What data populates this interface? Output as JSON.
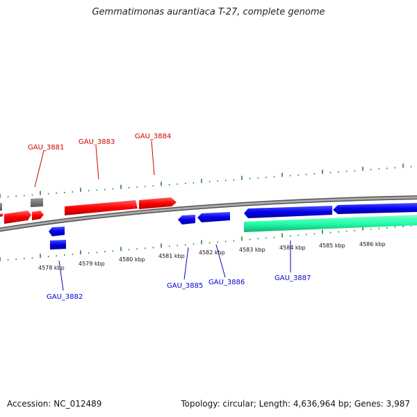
{
  "title": "Gemmatimonas aurantiaca T-27, complete genome",
  "footer": {
    "accession": "Accession: NC_012489",
    "summary": "Topology: circular; Length: 4,636,964 bp; Genes: 3,987"
  },
  "colors": {
    "forward_gene": "#ff0000",
    "reverse_gene": "#0000ee",
    "other_gene": "#666666",
    "rna_gene": "#22ffaa",
    "backbone": "#888888",
    "tick": "#228822",
    "forward_label": "#cc0000",
    "reverse_label": "#0000cc"
  },
  "scale_labels": [
    "4578 kbp",
    "4579 kbp",
    "4580 kbp",
    "4581 kbp",
    "4582 kbp",
    "4583 kbp",
    "4584 kbp",
    "4585 kbp",
    "4586 kbp"
  ],
  "gene_labels": {
    "top": [
      "GAU_3881",
      "GAU_3883",
      "GAU_3884"
    ],
    "bottom": [
      "GAU_3882",
      "GAU_3885",
      "GAU_3886",
      "GAU_3887"
    ]
  }
}
